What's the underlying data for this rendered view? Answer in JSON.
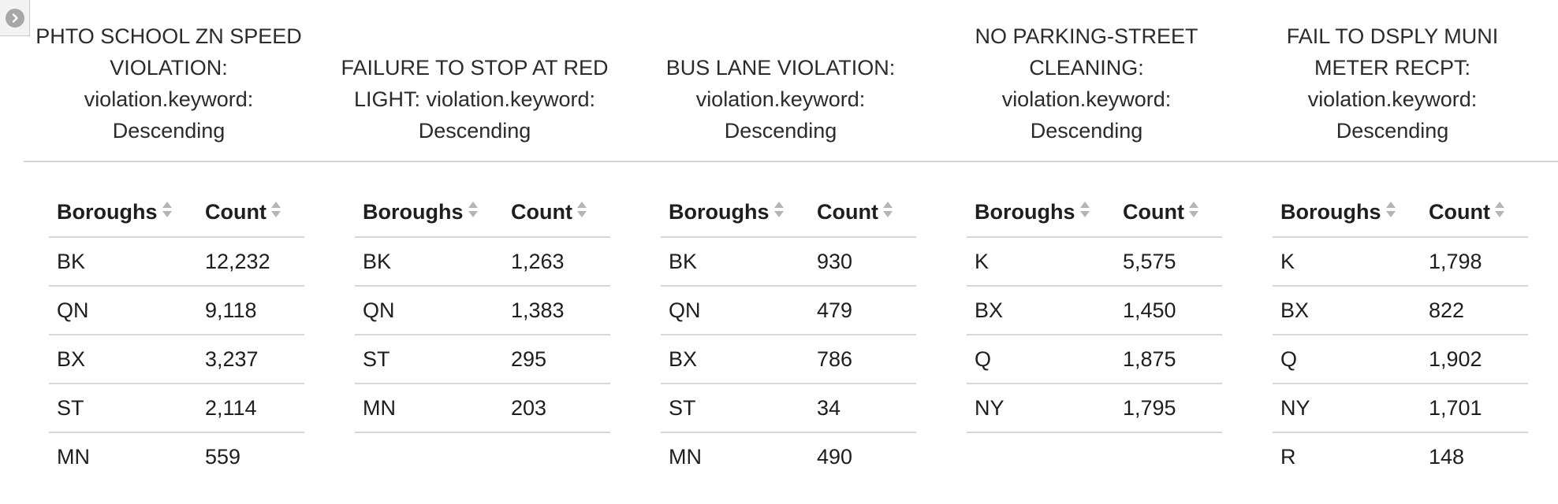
{
  "columns": [
    {
      "title": "PHTO SCHOOL ZN SPEED VIOLATION: violation.keyword: Descending",
      "headers": {
        "boroughs": "Boroughs",
        "count": "Count"
      },
      "rows": [
        {
          "borough": "BK",
          "count": "12,232"
        },
        {
          "borough": "QN",
          "count": "9,118"
        },
        {
          "borough": "BX",
          "count": "3,237"
        },
        {
          "borough": "ST",
          "count": "2,114"
        },
        {
          "borough": "MN",
          "count": "559"
        }
      ]
    },
    {
      "title": "FAILURE TO STOP AT RED LIGHT: violation.keyword: Descending",
      "headers": {
        "boroughs": "Boroughs",
        "count": "Count"
      },
      "rows": [
        {
          "borough": "BK",
          "count": "1,263"
        },
        {
          "borough": "QN",
          "count": "1,383"
        },
        {
          "borough": "ST",
          "count": "295"
        },
        {
          "borough": "MN",
          "count": "203"
        }
      ]
    },
    {
      "title": "BUS LANE VIOLATION: violation.keyword: Descending",
      "headers": {
        "boroughs": "Boroughs",
        "count": "Count"
      },
      "rows": [
        {
          "borough": "BK",
          "count": "930"
        },
        {
          "borough": "QN",
          "count": "479"
        },
        {
          "borough": "BX",
          "count": "786"
        },
        {
          "borough": "ST",
          "count": "34"
        },
        {
          "borough": "MN",
          "count": "490"
        }
      ]
    },
    {
      "title": "NO PARKING-STREET CLEANING: violation.keyword: Descending",
      "headers": {
        "boroughs": "Boroughs",
        "count": "Count"
      },
      "rows": [
        {
          "borough": "K",
          "count": "5,575"
        },
        {
          "borough": "BX",
          "count": "1,450"
        },
        {
          "borough": "Q",
          "count": "1,875"
        },
        {
          "borough": "NY",
          "count": "1,795"
        }
      ]
    },
    {
      "title": "FAIL TO DSPLY MUNI METER RECPT: violation.keyword: Descending",
      "headers": {
        "boroughs": "Boroughs",
        "count": "Count"
      },
      "rows": [
        {
          "borough": "K",
          "count": "1,798"
        },
        {
          "borough": "BX",
          "count": "822"
        },
        {
          "borough": "Q",
          "count": "1,902"
        },
        {
          "borough": "NY",
          "count": "1,701"
        },
        {
          "borough": "R",
          "count": "148"
        }
      ]
    }
  ],
  "icons": {
    "expand": "chevron-right-icon",
    "sort": "sort-icon"
  },
  "colors": {
    "sort_icon": "#b5b5b5",
    "expand_circle": "#a7a7a7",
    "divider": "#d8d8d8"
  }
}
